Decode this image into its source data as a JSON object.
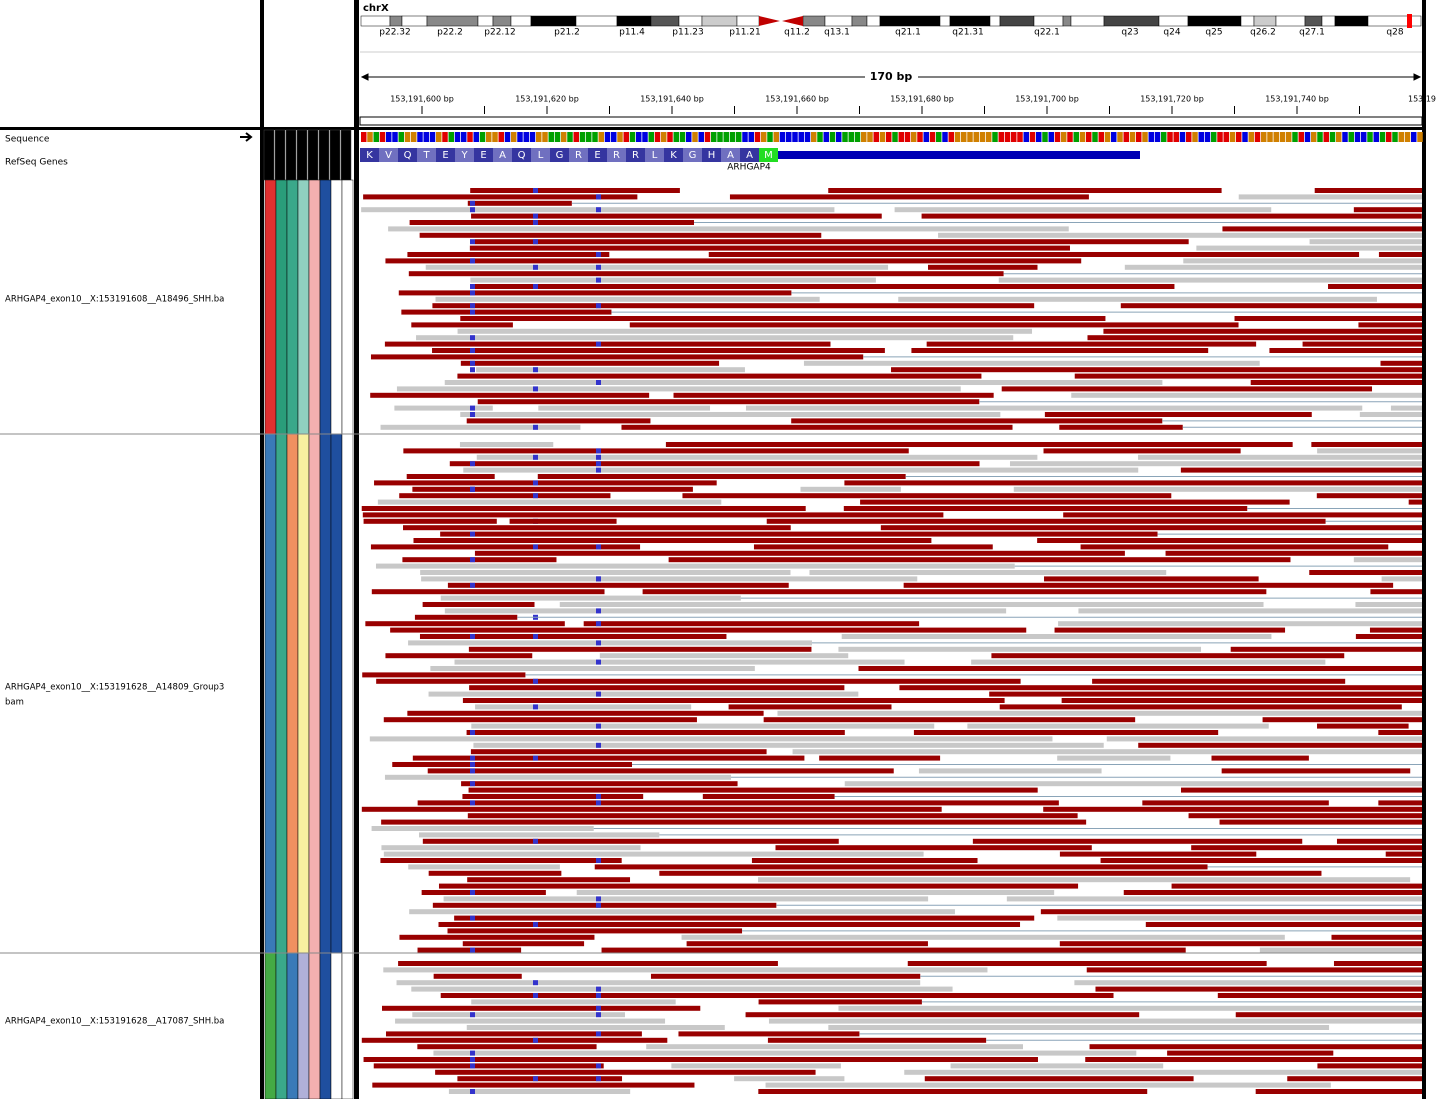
{
  "ideogram": {
    "chromosome": "chrX",
    "bands": [
      "p22.32",
      "p22.2",
      "p22.12",
      "p21.2",
      "p11.4",
      "p11.23",
      "p11.21",
      "q11.2",
      "q13.1",
      "q21.1",
      "q21.31",
      "q22.1",
      "q23",
      "q24",
      "q25",
      "q26.2",
      "q27.1",
      "q28"
    ]
  },
  "ruler": {
    "span": "170 bp",
    "positions": [
      "153,191,600 bp",
      "153,191,620 bp",
      "153,191,640 bp",
      "153,191,660 bp",
      "153,191,680 bp",
      "153,191,700 bp",
      "153,191,720 bp",
      "153,191,740 bp",
      "153,19"
    ]
  },
  "tracks": {
    "sequence": "Sequence",
    "refseq": "RefSeq Genes",
    "gene": "ARHGAP4",
    "amino_acids": [
      "K",
      "V",
      "Q",
      "T",
      "E",
      "Y",
      "E",
      "A",
      "Q",
      "L",
      "G",
      "R",
      "E",
      "R",
      "R",
      "L",
      "K",
      "G",
      "H",
      "A",
      "A",
      "M"
    ]
  },
  "alignments": [
    {
      "name_lines": [
        "ARHGAP4_exon10__X:153191608__A18496_SHH.ba"
      ]
    },
    {
      "name_lines": [
        "ARHGAP4_exon10__X:153191628__A14809_Group3",
        "bam"
      ]
    },
    {
      "name_lines": [
        "ARHGAP4_exon10__X:153191628__A17087_SHH.ba"
      ]
    }
  ]
}
